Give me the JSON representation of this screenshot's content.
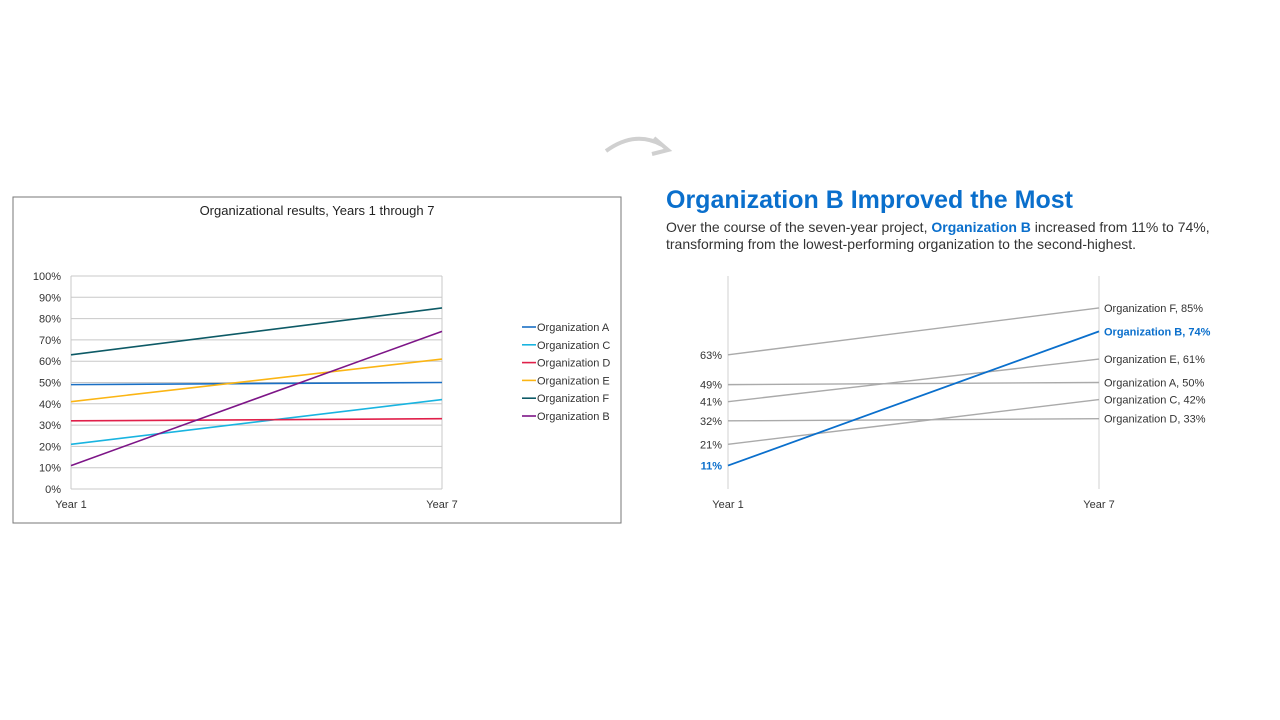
{
  "headline": "Organization B Improved the Most",
  "subtitle": {
    "pre": "Over the course of the seven-year project, ",
    "highlight": "Organization B",
    "post": " increased from 11% to 74%, transforming from the lowest-performing organization to the second-highest."
  },
  "chart_data": [
    {
      "type": "line",
      "title": "Organizational results, Years 1 through 7",
      "categories": [
        "Year 1",
        "Year 7"
      ],
      "ylim": [
        0,
        100
      ],
      "yticks": [
        "0%",
        "10%",
        "20%",
        "30%",
        "40%",
        "50%",
        "60%",
        "70%",
        "80%",
        "90%",
        "100%"
      ],
      "legend": "right",
      "series": [
        {
          "name": "Organization A",
          "values": [
            49,
            50
          ],
          "color": "#1a6fc4"
        },
        {
          "name": "Organization C",
          "values": [
            21,
            42
          ],
          "color": "#19b4e0"
        },
        {
          "name": "Organization D",
          "values": [
            32,
            33
          ],
          "color": "#e0204a"
        },
        {
          "name": "Organization E",
          "values": [
            41,
            61
          ],
          "color": "#fbb514"
        },
        {
          "name": "Organization F",
          "values": [
            63,
            85
          ],
          "color": "#0d5a66"
        },
        {
          "name": "Organization B",
          "values": [
            11,
            74
          ],
          "color": "#7d1587"
        }
      ]
    },
    {
      "type": "line",
      "title": "",
      "categories": [
        "Year 1",
        "Year 7"
      ],
      "ylim": [
        0,
        100
      ],
      "highlight": "Organization B",
      "highlight_color": "#0a6fcc",
      "base_color": "#aaaaaa",
      "series": [
        {
          "name": "Organization F",
          "values": [
            63,
            85
          ],
          "start_label": "63%",
          "end_label": "Organization F, 85%"
        },
        {
          "name": "Organization B",
          "values": [
            11,
            74
          ],
          "start_label": "11%",
          "end_label": "Organization B, 74%"
        },
        {
          "name": "Organization E",
          "values": [
            41,
            61
          ],
          "start_label": "41%",
          "end_label": "Organization E, 61%"
        },
        {
          "name": "Organization A",
          "values": [
            49,
            50
          ],
          "start_label": "49%",
          "end_label": "Organization A, 50%"
        },
        {
          "name": "Organization C",
          "values": [
            21,
            42
          ],
          "start_label": "21%",
          "end_label": "Organization C, 42%"
        },
        {
          "name": "Organization D",
          "values": [
            32,
            33
          ],
          "start_label": "32%",
          "end_label": "Organization D, 33%"
        }
      ]
    }
  ]
}
